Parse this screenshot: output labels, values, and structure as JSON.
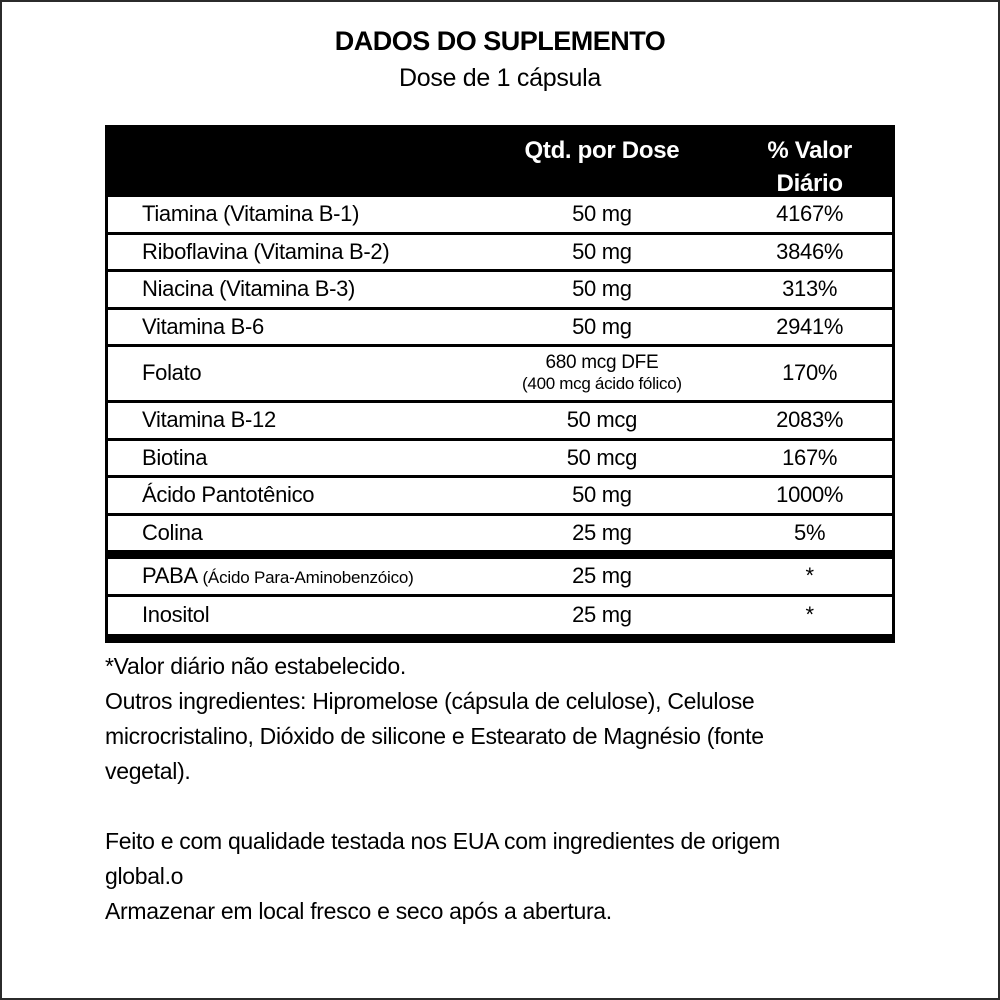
{
  "page": {
    "title": "DADOS DO SUPLEMENTO",
    "subtitle": "Dose de 1 cápsula"
  },
  "table": {
    "columns": {
      "qty_header": "Qtd. por Dose",
      "dv_header_line1": "% Valor",
      "dv_header_line2": "Diário"
    },
    "rows": [
      {
        "name": "Tiamina (Vitamina B-1)",
        "amount": "50 mg",
        "dv": "4167%"
      },
      {
        "name": "Riboflavina (Vitamina B-2)",
        "amount": "50 mg",
        "dv": "3846%"
      },
      {
        "name": "Niacina (Vitamina B-3)",
        "amount": "50 mg",
        "dv": "313%"
      },
      {
        "name": "Vitamina B-6",
        "amount": "50 mg",
        "dv": "2941%"
      },
      {
        "name": "Folato",
        "amount": "680 mcg DFE",
        "amount_note": "(400 mcg ácido fólico)",
        "dv": "170%"
      },
      {
        "name": "Vitamina B-12",
        "amount": "50 mcg",
        "dv": "2083%"
      },
      {
        "name": "Biotina",
        "amount": "50 mcg",
        "dv": "167%"
      },
      {
        "name": "Ácido Pantotênico",
        "amount": "50 mg",
        "dv": "1000%"
      },
      {
        "name": "Colina",
        "amount": "25 mg",
        "dv": "5%"
      },
      {
        "name": "PABA",
        "name_note": "(Ácido Para-Aminobenzóico)",
        "amount": "25 mg",
        "dv": "*"
      },
      {
        "name": "Inositol",
        "amount": "25 mg",
        "dv": "*"
      }
    ]
  },
  "footnotes": {
    "dv_note": "*Valor diário não estabelecido.",
    "other_ingredients_lines": [
      "Outros ingredientes: Hipromelose (cápsula de celulose), Celulose",
      "microcristalino, Dióxido de silicone e Estearato de Magnésio (fonte",
      "vegetal)."
    ],
    "origin_lines": [
      "Feito e com qualidade testada nos EUA com ingredientes de origem",
      "global.o"
    ],
    "storage_note": "Armazenar em local fresco e seco após a abertura."
  },
  "colors": {
    "header_bg": "#000000",
    "header_text": "#ffffff",
    "body_text": "#000000",
    "background": "#ffffff"
  }
}
